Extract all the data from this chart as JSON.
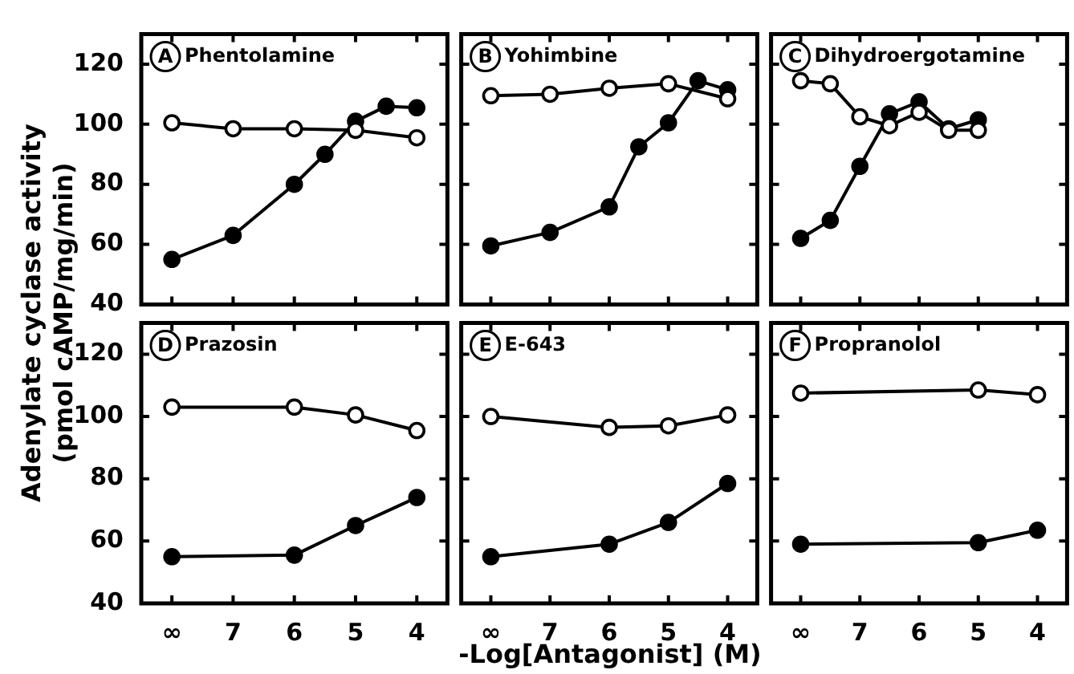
{
  "chart_data": [
    {
      "type": "line",
      "title": "Phentolamine",
      "annotations": [
        "A"
      ],
      "ylabel": "Adenylate cyclase activity\n(pmol cAMP/mg/min)",
      "xlim": [
        8.5,
        3.5
      ],
      "xticks": [
        {
          "value": 8,
          "label": null
        },
        {
          "value": 7,
          "label": null
        },
        {
          "value": 6,
          "label": null
        },
        {
          "value": 5,
          "label": null
        },
        {
          "value": 4,
          "label": null
        }
      ],
      "ylim": [
        40,
        130
      ],
      "yticks": [
        40,
        60,
        80,
        100,
        120
      ],
      "tick_labels": "y",
      "marker": "circle",
      "line_style": "solid",
      "series": [
        {
          "color": "#000000",
          "x": [
            8,
            7,
            6,
            5,
            4
          ],
          "values": [
            100.5,
            98.5,
            98.5,
            98,
            95.5
          ]
        },
        {
          "color": "#000000",
          "x": [
            8,
            7,
            6,
            5.5,
            5,
            4.5,
            4
          ],
          "values": [
            55,
            63,
            80,
            90,
            101,
            106,
            105.5
          ]
        }
      ]
    },
    {
      "type": "line",
      "title": "Yohimbine",
      "annotations": [
        "B"
      ],
      "xlim": [
        8.5,
        3.5
      ],
      "xticks": [
        {
          "value": 8,
          "label": null
        },
        {
          "value": 7,
          "label": null
        },
        {
          "value": 6,
          "label": null
        },
        {
          "value": 5,
          "label": null
        },
        {
          "value": 4,
          "label": null
        }
      ],
      "ylim": [
        40,
        130
      ],
      "yticks": [
        40,
        60,
        80,
        100,
        120
      ],
      "tick_labels": false,
      "marker": "circle",
      "line_style": "solid",
      "series": [
        {
          "color": "#000000",
          "x": [
            8,
            7,
            6,
            5,
            4
          ],
          "values": [
            109.5,
            110,
            112,
            113.5,
            108.5
          ]
        },
        {
          "color": "#000000",
          "x": [
            8,
            7,
            6,
            5.5,
            5,
            4.5,
            4
          ],
          "values": [
            59.5,
            64,
            72.5,
            92.5,
            100.5,
            114.5,
            111.5
          ]
        }
      ]
    },
    {
      "type": "line",
      "title": "Dihydroergotamine",
      "annotations": [
        "C"
      ],
      "xlim": [
        8.5,
        3.5
      ],
      "xticks": [
        {
          "value": 8,
          "label": null
        },
        {
          "value": 7,
          "label": null
        },
        {
          "value": 6,
          "label": null
        },
        {
          "value": 5,
          "label": null
        },
        {
          "value": 4,
          "label": null
        }
      ],
      "ylim": [
        40,
        130
      ],
      "yticks": [
        40,
        60,
        80,
        100,
        120
      ],
      "tick_labels": false,
      "marker": "circle",
      "line_style": "solid",
      "series": [
        {
          "color": "#000000",
          "x": [
            8,
            7.5,
            7,
            6.5,
            6,
            5.5,
            5
          ],
          "values": [
            114.5,
            113.5,
            102.5,
            99.5,
            104,
            98,
            98
          ]
        },
        {
          "color": "#000000",
          "x": [
            8,
            7.5,
            7,
            6.5,
            6,
            5.5,
            5
          ],
          "values": [
            62,
            68,
            86,
            103.5,
            107.5,
            98.5,
            101.5
          ]
        }
      ]
    },
    {
      "type": "line",
      "title": "Prazosin",
      "annotations": [
        "D"
      ],
      "xlim": [
        8.5,
        3.5
      ],
      "xticks": [
        {
          "value": 8,
          "label": "∞"
        },
        7,
        6,
        5,
        4
      ],
      "ylim": [
        40,
        130
      ],
      "yticks": [
        40,
        60,
        80,
        100,
        120
      ],
      "marker": "circle",
      "line_style": "solid",
      "series": [
        {
          "color": "#000000",
          "x": [
            8,
            6,
            5,
            4
          ],
          "values": [
            103,
            103,
            100.5,
            95.5
          ]
        },
        {
          "color": "#000000",
          "x": [
            8,
            6,
            5,
            4
          ],
          "values": [
            55,
            55.5,
            65,
            74
          ]
        }
      ]
    },
    {
      "type": "line",
      "title": "E-643",
      "annotations": [
        "E"
      ],
      "xlabel": "-Log[Antagonist] (M)",
      "xlim": [
        8.5,
        3.5
      ],
      "xticks": [
        {
          "value": 8,
          "label": "∞"
        },
        7,
        6,
        5,
        4
      ],
      "ylim": [
        40,
        130
      ],
      "yticks": [
        40,
        60,
        80,
        100,
        120
      ],
      "tick_labels": "x",
      "marker": "circle",
      "line_style": "solid",
      "series": [
        {
          "color": "#000000",
          "x": [
            8,
            6,
            5,
            4
          ],
          "values": [
            100,
            96.5,
            97,
            100.5
          ]
        },
        {
          "color": "#000000",
          "x": [
            8,
            6,
            5,
            4
          ],
          "values": [
            55,
            59,
            66,
            78.5
          ]
        }
      ]
    },
    {
      "type": "line",
      "title": "Propranolol",
      "annotations": [
        "F"
      ],
      "xlim": [
        8.5,
        3.5
      ],
      "xticks": [
        {
          "value": 8,
          "label": "∞"
        },
        7,
        6,
        5,
        4
      ],
      "ylim": [
        40,
        130
      ],
      "yticks": [
        40,
        60,
        80,
        100,
        120
      ],
      "tick_labels": "x",
      "marker": "circle",
      "line_style": "solid",
      "series": [
        {
          "color": "#000000",
          "x": [
            8,
            5,
            4
          ],
          "values": [
            107.5,
            108.5,
            107
          ]
        },
        {
          "color": "#000000",
          "x": [
            8,
            5,
            4
          ],
          "values": [
            59,
            59.5,
            63.5
          ]
        }
      ]
    }
  ]
}
